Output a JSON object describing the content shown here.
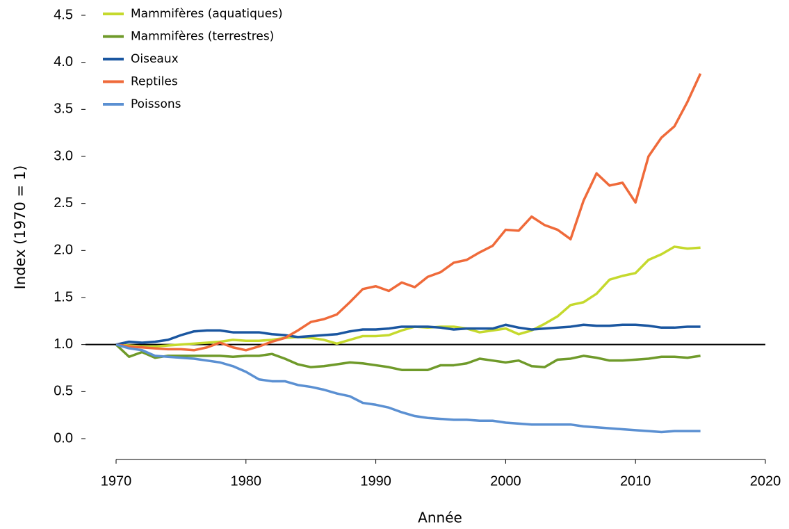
{
  "chart_data": {
    "type": "line",
    "xlabel": "Année",
    "ylabel": "Index (1970 = 1)",
    "xlim": [
      1970,
      2020
    ],
    "xticks": [
      1970,
      1980,
      1990,
      2000,
      2010,
      2020
    ],
    "ylim": [
      0,
      4.5
    ],
    "yticks": [
      {
        "value": 0,
        "label": "0.0"
      },
      0.5,
      {
        "value": 1,
        "label": "1.0"
      },
      1.5,
      {
        "value": 2,
        "label": "2.0"
      },
      2.5,
      {
        "value": 3,
        "label": "3.0"
      },
      3.5,
      {
        "value": 4,
        "label": "4.0"
      },
      4.5
    ],
    "reference_line": 1,
    "legend": "top-left",
    "x": [
      1970,
      1971,
      1972,
      1973,
      1974,
      1975,
      1976,
      1977,
      1978,
      1979,
      1980,
      1981,
      1982,
      1983,
      1984,
      1985,
      1986,
      1987,
      1988,
      1989,
      1990,
      1991,
      1992,
      1993,
      1994,
      1995,
      1996,
      1997,
      1998,
      1999,
      2000,
      2001,
      2002,
      2003,
      2004,
      2005,
      2006,
      2007,
      2008,
      2009,
      2010,
      2011,
      2012,
      2013,
      2014,
      2015
    ],
    "series": [
      {
        "name": "Mammifères (aquatiques)",
        "color": "#c5d92d",
        "values": [
          1.0,
          0.99,
          0.98,
          0.98,
          0.99,
          1.0,
          1.01,
          1.02,
          1.03,
          1.05,
          1.04,
          1.04,
          1.05,
          1.07,
          1.08,
          1.07,
          1.05,
          1.01,
          1.05,
          1.09,
          1.09,
          1.1,
          1.15,
          1.19,
          1.18,
          1.19,
          1.19,
          1.17,
          1.13,
          1.15,
          1.17,
          1.11,
          1.15,
          1.22,
          1.3,
          1.42,
          1.45,
          1.54,
          1.69,
          1.73,
          1.76,
          1.9,
          1.96,
          2.04,
          2.02,
          2.03
        ]
      },
      {
        "name": "Mammifères (terrestres)",
        "color": "#6f9a2a",
        "values": [
          1.0,
          0.87,
          0.92,
          0.86,
          0.88,
          0.88,
          0.88,
          0.88,
          0.88,
          0.87,
          0.88,
          0.88,
          0.9,
          0.85,
          0.79,
          0.76,
          0.77,
          0.79,
          0.81,
          0.8,
          0.78,
          0.76,
          0.73,
          0.73,
          0.73,
          0.78,
          0.78,
          0.8,
          0.85,
          0.83,
          0.81,
          0.83,
          0.77,
          0.76,
          0.84,
          0.85,
          0.88,
          0.86,
          0.83,
          0.83,
          0.84,
          0.85,
          0.87,
          0.87,
          0.86,
          0.88
        ]
      },
      {
        "name": "Oiseaux",
        "color": "#1a56a0",
        "values": [
          1.0,
          1.03,
          1.02,
          1.03,
          1.05,
          1.1,
          1.14,
          1.15,
          1.15,
          1.13,
          1.13,
          1.13,
          1.11,
          1.1,
          1.08,
          1.09,
          1.1,
          1.11,
          1.14,
          1.16,
          1.16,
          1.17,
          1.19,
          1.19,
          1.19,
          1.18,
          1.16,
          1.17,
          1.17,
          1.17,
          1.21,
          1.18,
          1.16,
          1.17,
          1.18,
          1.19,
          1.21,
          1.2,
          1.2,
          1.21,
          1.21,
          1.2,
          1.18,
          1.18,
          1.19,
          1.19
        ]
      },
      {
        "name": "Reptiles",
        "color": "#ef6a3a",
        "values": [
          1.0,
          0.98,
          0.97,
          0.96,
          0.95,
          0.95,
          0.94,
          0.97,
          1.02,
          0.97,
          0.94,
          0.98,
          1.03,
          1.07,
          1.15,
          1.24,
          1.27,
          1.32,
          1.45,
          1.59,
          1.62,
          1.57,
          1.66,
          1.61,
          1.72,
          1.77,
          1.87,
          1.9,
          1.98,
          2.05,
          2.22,
          2.21,
          2.36,
          2.27,
          2.22,
          2.12,
          2.53,
          2.82,
          2.69,
          2.72,
          2.51,
          3.0,
          3.2,
          3.32,
          3.58,
          3.88
        ]
      },
      {
        "name": "Poissons",
        "color": "#5b90d2",
        "values": [
          1.0,
          0.96,
          0.94,
          0.88,
          0.87,
          0.86,
          0.85,
          0.83,
          0.81,
          0.77,
          0.71,
          0.63,
          0.61,
          0.61,
          0.57,
          0.55,
          0.52,
          0.48,
          0.45,
          0.38,
          0.36,
          0.33,
          0.28,
          0.24,
          0.22,
          0.21,
          0.2,
          0.2,
          0.19,
          0.19,
          0.17,
          0.16,
          0.15,
          0.15,
          0.15,
          0.15,
          0.13,
          0.12,
          0.11,
          0.1,
          0.09,
          0.08,
          0.07,
          0.08,
          0.08,
          0.08
        ]
      }
    ]
  }
}
